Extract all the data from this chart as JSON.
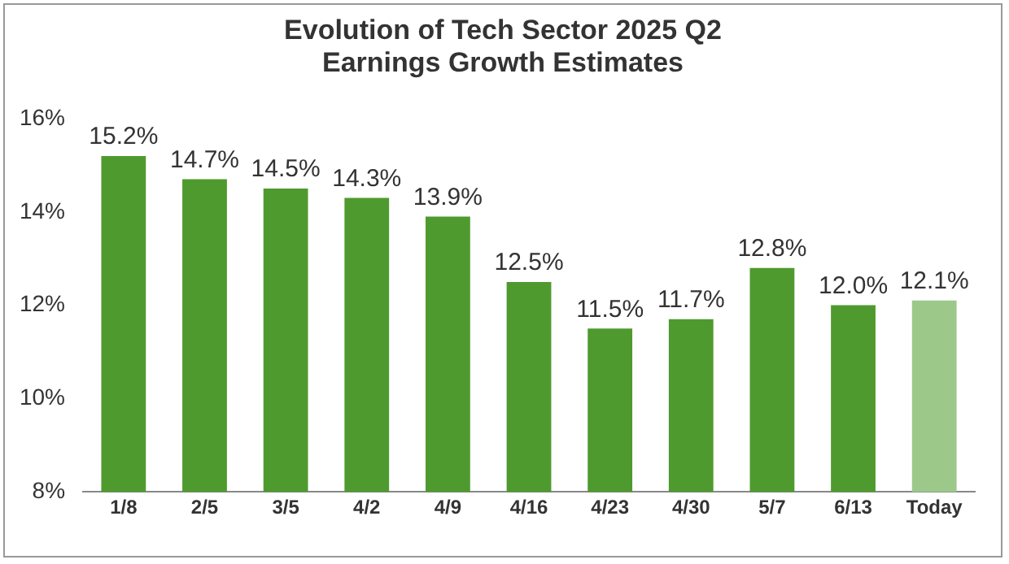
{
  "chart_data": {
    "type": "bar",
    "title": "Evolution of Tech Sector 2025 Q2 Earnings Growth Estimates",
    "categories": [
      "1/8",
      "2/5",
      "3/5",
      "4/2",
      "4/9",
      "4/16",
      "4/23",
      "4/30",
      "5/7",
      "6/13",
      "Today"
    ],
    "values": [
      15.2,
      14.7,
      14.5,
      14.3,
      13.9,
      12.5,
      11.5,
      11.7,
      12.8,
      12.0,
      12.1
    ],
    "colors": [
      "#4e9a2f",
      "#4e9a2f",
      "#4e9a2f",
      "#4e9a2f",
      "#4e9a2f",
      "#4e9a2f",
      "#4e9a2f",
      "#4e9a2f",
      "#4e9a2f",
      "#4e9a2f",
      "#9cc98a"
    ],
    "value_labels": [
      "15.2%",
      "14.7%",
      "14.5%",
      "14.3%",
      "13.9%",
      "12.5%",
      "11.5%",
      "11.7%",
      "12.8%",
      "12.0%",
      "12.1%"
    ],
    "ylim": [
      8,
      16
    ],
    "yticks": [
      {
        "value": 8,
        "label": "8%"
      },
      {
        "value": 10,
        "label": "10%"
      },
      {
        "value": 12,
        "label": "12%"
      },
      {
        "value": 14,
        "label": "14%"
      },
      {
        "value": 16,
        "label": "16%"
      }
    ],
    "grid": false,
    "legend": false
  }
}
